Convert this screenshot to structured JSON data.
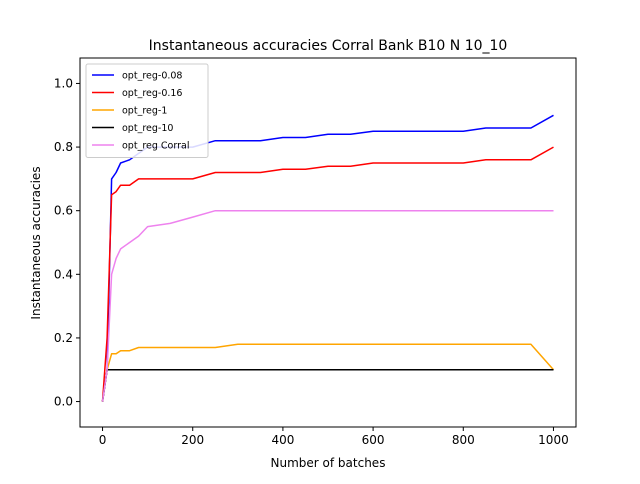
{
  "chart_data": {
    "type": "line",
    "title": "Instantaneous accuracies Corral Bank B10 N 10_10",
    "xlabel": "Number of batches",
    "ylabel": "Instantaneous accuracies",
    "xlim": [
      -50,
      1050
    ],
    "ylim": [
      -0.08,
      1.08
    ],
    "xticks": [
      0,
      200,
      400,
      600,
      800,
      1000
    ],
    "yticks": [
      0.0,
      0.2,
      0.4,
      0.6,
      0.8,
      1.0
    ],
    "xtick_labels": [
      "0",
      "200",
      "400",
      "600",
      "800",
      "1000"
    ],
    "ytick_labels": [
      "0.0",
      "0.2",
      "0.4",
      "0.6",
      "0.8",
      "1.0"
    ],
    "legend_position": "top-left",
    "grid": false,
    "series": [
      {
        "name": "opt_reg-0.08",
        "color": "#0000ff",
        "x": [
          0,
          10,
          20,
          30,
          40,
          60,
          80,
          100,
          150,
          200,
          250,
          300,
          350,
          400,
          450,
          500,
          550,
          600,
          650,
          700,
          750,
          800,
          850,
          900,
          950,
          1000
        ],
        "y": [
          0.0,
          0.1,
          0.7,
          0.72,
          0.75,
          0.76,
          0.78,
          0.8,
          0.8,
          0.8,
          0.82,
          0.82,
          0.82,
          0.83,
          0.83,
          0.84,
          0.84,
          0.85,
          0.85,
          0.85,
          0.85,
          0.85,
          0.86,
          0.86,
          0.86,
          0.9
        ]
      },
      {
        "name": "opt_reg-0.16",
        "color": "#ff0000",
        "x": [
          0,
          10,
          20,
          30,
          40,
          60,
          80,
          100,
          150,
          200,
          250,
          300,
          350,
          400,
          450,
          500,
          550,
          600,
          650,
          700,
          750,
          800,
          850,
          900,
          950,
          1000
        ],
        "y": [
          0.0,
          0.2,
          0.65,
          0.66,
          0.68,
          0.68,
          0.7,
          0.7,
          0.7,
          0.7,
          0.72,
          0.72,
          0.72,
          0.73,
          0.73,
          0.74,
          0.74,
          0.75,
          0.75,
          0.75,
          0.75,
          0.75,
          0.76,
          0.76,
          0.76,
          0.8
        ]
      },
      {
        "name": "opt_reg-1",
        "color": "#ffa500",
        "x": [
          0,
          10,
          20,
          30,
          40,
          60,
          80,
          100,
          150,
          200,
          250,
          300,
          350,
          400,
          450,
          500,
          550,
          600,
          650,
          700,
          750,
          800,
          850,
          900,
          950,
          1000
        ],
        "y": [
          0.0,
          0.1,
          0.15,
          0.15,
          0.16,
          0.16,
          0.17,
          0.17,
          0.17,
          0.17,
          0.17,
          0.18,
          0.18,
          0.18,
          0.18,
          0.18,
          0.18,
          0.18,
          0.18,
          0.18,
          0.18,
          0.18,
          0.18,
          0.18,
          0.18,
          0.1
        ]
      },
      {
        "name": "opt_reg-10",
        "color": "#000000",
        "x": [
          0,
          10,
          20,
          30,
          40,
          60,
          80,
          100,
          150,
          200,
          250,
          300,
          350,
          400,
          450,
          500,
          550,
          600,
          650,
          700,
          750,
          800,
          850,
          900,
          950,
          1000
        ],
        "y": [
          0.0,
          0.1,
          0.1,
          0.1,
          0.1,
          0.1,
          0.1,
          0.1,
          0.1,
          0.1,
          0.1,
          0.1,
          0.1,
          0.1,
          0.1,
          0.1,
          0.1,
          0.1,
          0.1,
          0.1,
          0.1,
          0.1,
          0.1,
          0.1,
          0.1,
          0.1
        ]
      },
      {
        "name": "opt_reg Corral",
        "color": "#ee82ee",
        "x": [
          0,
          10,
          20,
          30,
          40,
          60,
          80,
          100,
          150,
          200,
          250,
          300,
          350,
          400,
          450,
          500,
          550,
          600,
          650,
          700,
          750,
          800,
          850,
          900,
          950,
          1000
        ],
        "y": [
          0.0,
          0.1,
          0.4,
          0.45,
          0.48,
          0.5,
          0.52,
          0.55,
          0.56,
          0.58,
          0.6,
          0.6,
          0.6,
          0.6,
          0.6,
          0.6,
          0.6,
          0.6,
          0.6,
          0.6,
          0.6,
          0.6,
          0.6,
          0.6,
          0.6,
          0.6
        ]
      }
    ]
  }
}
